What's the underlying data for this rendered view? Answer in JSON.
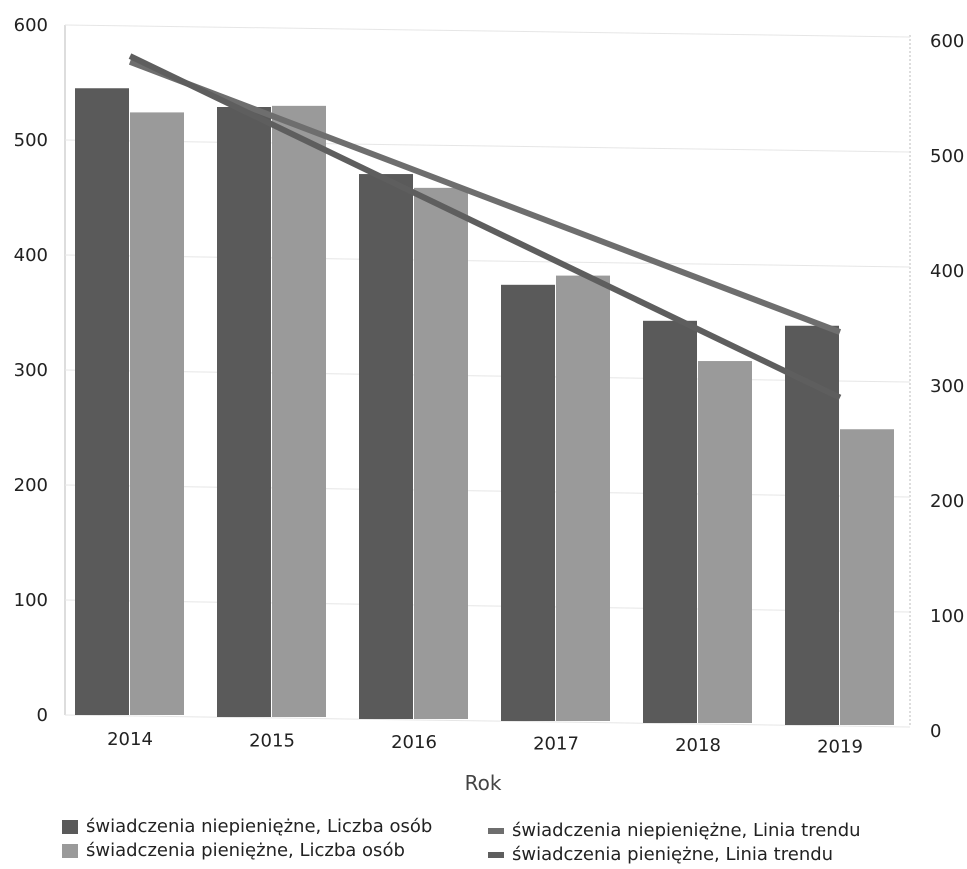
{
  "chart_data": {
    "type": "bar",
    "categories": [
      "2014",
      "2015",
      "2016",
      "2017",
      "2018",
      "2019"
    ],
    "series": [
      {
        "name": "świadczenia niepieniężne, Liczba osób",
        "values": [
          545,
          530,
          473,
          378,
          348,
          345
        ],
        "color": "#5a5a5a"
      },
      {
        "name": "świadczenia pieniężne, Liczba osób",
        "values": [
          524,
          531,
          461,
          386,
          313,
          255
        ],
        "color": "#9a9a9a"
      }
    ],
    "trend_lines": [
      {
        "name": "świadczenia niepieniężne, Linia trendu",
        "start": 568,
        "end": 333,
        "color": "#6e6e6e"
      },
      {
        "name": "świadczenia pieniężne, Linia trendu",
        "start": 573,
        "end": 276,
        "color": "#5e5e5e"
      }
    ],
    "xlabel": "Rok",
    "ylabel": "",
    "ylim": [
      0,
      600
    ],
    "yticks": [
      "0",
      "100",
      "200",
      "300",
      "400",
      "500",
      "600"
    ],
    "y2ticks": [
      "0",
      "100",
      "200",
      "300",
      "400",
      "500",
      "600"
    ],
    "grid": true,
    "legend_position": "bottom"
  }
}
